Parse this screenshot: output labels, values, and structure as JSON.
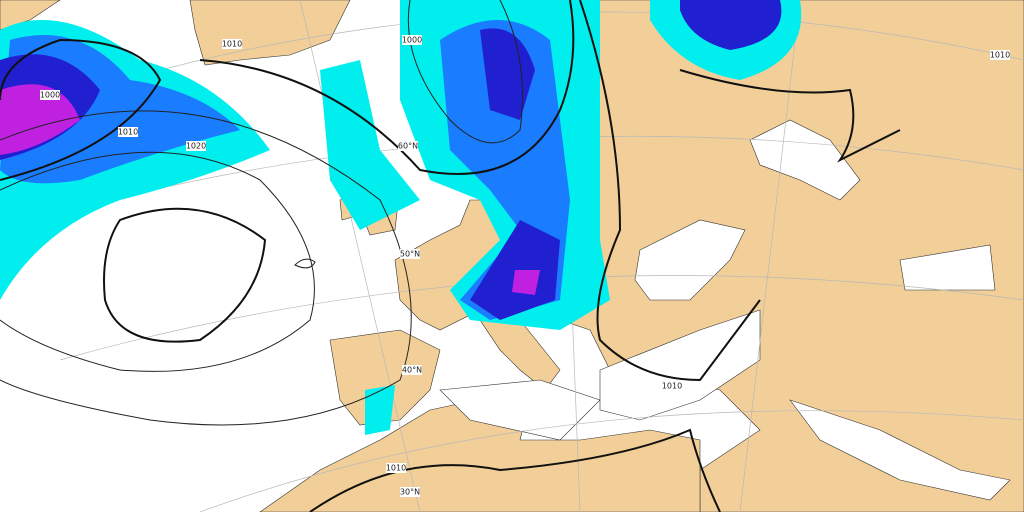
{
  "isobar_labels": [
    "1010",
    "1020",
    "1000",
    "1010",
    "1010",
    "1010",
    "1000",
    "1010"
  ],
  "latitude_labels": [
    "60°N",
    "50°N",
    "40°N",
    "30°N"
  ]
}
